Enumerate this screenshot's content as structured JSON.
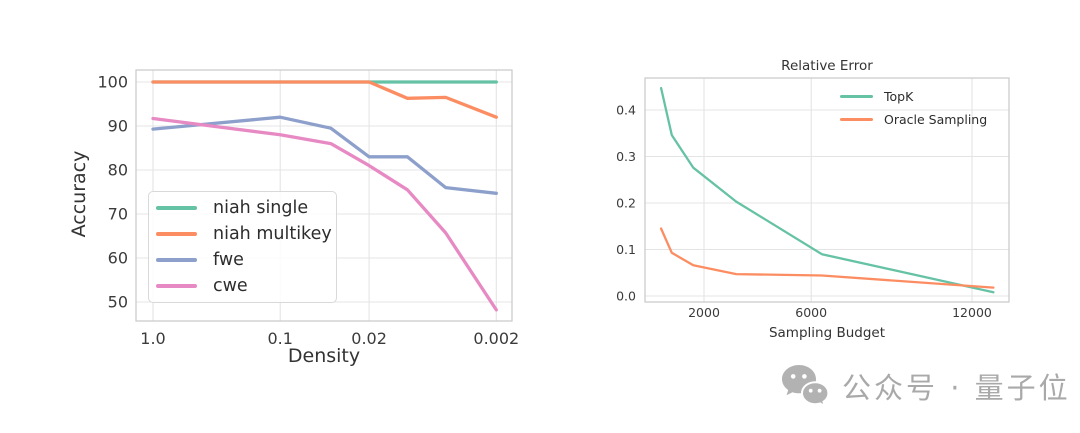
{
  "watermark": {
    "icon": "wechat-icon",
    "text": "公众号 · 量子位",
    "color": "#b0b0b0"
  },
  "style_colors": {
    "grid": "#e4e4e4",
    "spine": "#c9c9c9",
    "tick_text": "#3b3b3b"
  },
  "chart_data": [
    {
      "id": "accuracy-vs-density",
      "type": "line",
      "title": "",
      "xlabel": "Density",
      "ylabel": "Accuracy",
      "x_scale": "log-reversed",
      "grid": true,
      "x": [
        1.0,
        0.1,
        0.04,
        0.02,
        0.01,
        0.005,
        0.002
      ],
      "x_ticks": [
        1.0,
        0.1,
        0.02,
        0.002
      ],
      "x_tick_labels": [
        "1.0",
        "0.1",
        "0.02",
        "0.002"
      ],
      "y_ticks": [
        50,
        60,
        70,
        80,
        90,
        100
      ],
      "y_tick_labels": [
        "50",
        "60",
        "70",
        "80",
        "90",
        "100"
      ],
      "xlim": [
        1.36,
        0.0015
      ],
      "ylim": [
        45.7,
        102.7
      ],
      "legend_position": "lower left",
      "legend_frame": true,
      "series": [
        {
          "name": "niah single",
          "color": "#66c2a5",
          "values": [
            100,
            100,
            100,
            100,
            100,
            100,
            100
          ]
        },
        {
          "name": "niah multikey",
          "color": "#fc8d62",
          "values": [
            100,
            100,
            100,
            100,
            96.3,
            96.5,
            92
          ]
        },
        {
          "name": "fwe",
          "color": "#8da0cb",
          "values": [
            89.3,
            92,
            89.5,
            83,
            83,
            76,
            74.7
          ]
        },
        {
          "name": "cwe",
          "color": "#e78ac3",
          "values": [
            91.7,
            88,
            86,
            81,
            75.5,
            65.7,
            48.2
          ]
        }
      ]
    },
    {
      "id": "relative-error-vs-sampling-budget",
      "type": "line",
      "title": "Relative Error",
      "xlabel": "Sampling Budget",
      "ylabel": "",
      "x_scale": "linear",
      "grid": true,
      "x": [
        400,
        800,
        1600,
        3200,
        6400,
        12800
      ],
      "x_ticks": [
        2000,
        6000,
        12000
      ],
      "x_tick_labels": [
        "2000",
        "6000",
        "12000"
      ],
      "y_ticks": [
        0.0,
        0.1,
        0.2,
        0.3,
        0.4
      ],
      "y_tick_labels": [
        "0.0",
        "0.1",
        "0.2",
        "0.3",
        "0.4"
      ],
      "xlim": [
        -200,
        13380
      ],
      "ylim": [
        -0.013,
        0.469
      ],
      "legend_position": "upper right",
      "legend_frame": false,
      "series": [
        {
          "name": "TopK",
          "color": "#66c2a5",
          "values": [
            0.447,
            0.346,
            0.276,
            0.203,
            0.09,
            0.008
          ]
        },
        {
          "name": "Oracle Sampling",
          "color": "#fc8d62",
          "values": [
            0.145,
            0.093,
            0.066,
            0.047,
            0.044,
            0.018
          ]
        }
      ]
    }
  ]
}
